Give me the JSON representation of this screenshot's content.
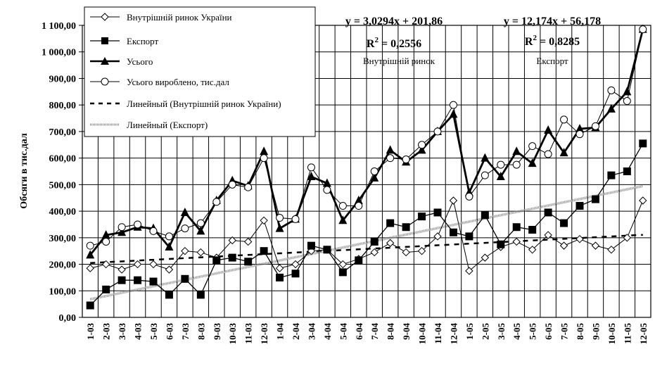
{
  "chart_data": {
    "type": "line",
    "ylabel": "Обсяги в тис.дал",
    "ylim": [
      0,
      1100
    ],
    "ytick_labels": [
      "0,00",
      "100,00",
      "200,00",
      "300,00",
      "400,00",
      "500,00",
      "600,00",
      "700,00",
      "800,00",
      "900,00",
      "1 000,00",
      "1 100,00"
    ],
    "ytick_values": [
      0,
      100,
      200,
      300,
      400,
      500,
      600,
      700,
      800,
      900,
      1000,
      1100
    ],
    "categories": [
      "1-03",
      "2-03",
      "3-03",
      "4-03",
      "5-03",
      "6-03",
      "7-03",
      "8-03",
      "9-03",
      "10-03",
      "11-03",
      "12-03",
      "1-04",
      "2-04",
      "3-04",
      "4-04",
      "5-04",
      "6-04",
      "7-04",
      "8-04",
      "9-04",
      "10-04",
      "11-04",
      "12-04",
      "1-05",
      "2-05",
      "3-05",
      "4-05",
      "5-05",
      "6-05",
      "7-05",
      "8-05",
      "9-05",
      "10-05",
      "11-05",
      "12-05"
    ],
    "grid": "horizontal and vertical",
    "legend_position": "top-left",
    "series": [
      {
        "name": "Внутрішній ринок України",
        "marker": "diamond-open",
        "color": "#000000",
        "values": [
          185,
          200,
          180,
          200,
          200,
          180,
          250,
          245,
          225,
          290,
          285,
          365,
          185,
          200,
          250,
          255,
          200,
          220,
          245,
          280,
          245,
          250,
          305,
          440,
          175,
          225,
          265,
          285,
          255,
          310,
          270,
          295,
          270,
          255,
          300,
          440
        ]
      },
      {
        "name": "Експорт",
        "marker": "square-filled",
        "color": "#000000",
        "values": [
          45,
          105,
          140,
          140,
          135,
          85,
          145,
          85,
          215,
          225,
          210,
          250,
          150,
          165,
          270,
          255,
          170,
          215,
          285,
          355,
          340,
          380,
          395,
          320,
          305,
          385,
          275,
          340,
          330,
          395,
          355,
          420,
          445,
          535,
          550,
          655
        ]
      },
      {
        "name": "Усього",
        "marker": "triangle-filled",
        "color": "#000000",
        "values": [
          235,
          310,
          320,
          340,
          335,
          265,
          395,
          325,
          440,
          515,
          495,
          625,
          335,
          370,
          530,
          505,
          365,
          440,
          525,
          630,
          585,
          630,
          700,
          765,
          470,
          600,
          530,
          625,
          580,
          705,
          620,
          710,
          715,
          785,
          850,
          1085
        ]
      },
      {
        "name": "Усього вироблено, тис.дал",
        "marker": "circle-open",
        "color": "#000000",
        "values": [
          270,
          285,
          340,
          350,
          325,
          305,
          335,
          355,
          435,
          500,
          490,
          600,
          375,
          370,
          565,
          480,
          420,
          420,
          550,
          600,
          595,
          650,
          700,
          800,
          455,
          535,
          575,
          575,
          645,
          615,
          745,
          690,
          720,
          855,
          815,
          1085
        ]
      }
    ],
    "trendlines": [
      {
        "name": "Линейный (Внутрішній ринок України)",
        "style": "dashed",
        "slope": 3.0294,
        "intercept": 201.86
      },
      {
        "name": "Линейный (Експорт)",
        "style": "dotted-thick",
        "slope": 12.174,
        "intercept": 56.178
      }
    ],
    "annotations": [
      {
        "equation": "y = 3,0294x + 201,86",
        "r2_prefix": "R",
        "r2_value": " = 0,2556",
        "caption": "Внутрішній ринок"
      },
      {
        "equation": "y = 12,174x + 56,178",
        "r2_prefix": "R",
        "r2_value": " = 0,8285",
        "caption": "Експорт"
      }
    ],
    "r2_superscript": "2"
  }
}
